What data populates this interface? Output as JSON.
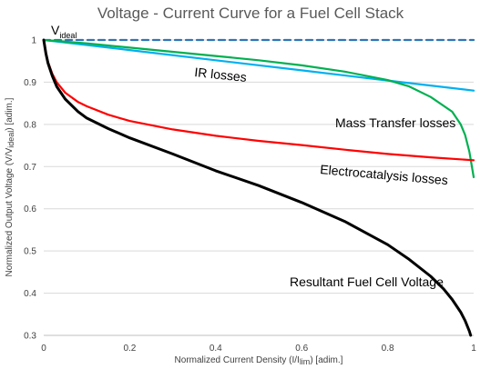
{
  "chart_data": {
    "type": "line",
    "title": "Voltage - Current Curve for a Fuel Cell  Stack",
    "xlabel_main": "Normalized Current Density (I/I",
    "xlabel_sub": "lim",
    "xlabel_tail": ") [adim.]",
    "ylabel_main": "Normalized Output Voltage (V/V",
    "ylabel_sub": "ideal",
    "ylabel_tail": ")  [adim.]",
    "xlim": [
      0,
      1
    ],
    "ylim": [
      0.3,
      1.0
    ],
    "x_ticks": [
      "0",
      "0.2",
      "0.4",
      "0.6",
      "0.8",
      "1"
    ],
    "y_ticks": [
      "0.3",
      "0.4",
      "0.5",
      "0.6",
      "0.7",
      "0.8",
      "0.9",
      "1"
    ],
    "grid": "horizontal",
    "legend": "none",
    "annotations": {
      "videal_main": "V",
      "videal_sub": "ideal",
      "ir": "IR losses",
      "mass": "Mass Transfer losses",
      "electro": "Electrocatalysis losses",
      "result": "Resultant Fuel Cell Voltage"
    },
    "series": [
      {
        "key": "ideal",
        "color": "#2E75B6",
        "dash": true,
        "points": [
          [
            0,
            1.0
          ],
          [
            1.0,
            1.0
          ]
        ]
      },
      {
        "key": "ir",
        "color": "#00B0F0",
        "dash": false,
        "points": [
          [
            0,
            1.0
          ],
          [
            0.2,
            0.976
          ],
          [
            0.4,
            0.952
          ],
          [
            0.6,
            0.928
          ],
          [
            0.8,
            0.904
          ],
          [
            1.0,
            0.88
          ]
        ]
      },
      {
        "key": "mass",
        "color": "#00B050",
        "dash": false,
        "points": [
          [
            0,
            1.0
          ],
          [
            0.1,
            0.992
          ],
          [
            0.2,
            0.982
          ],
          [
            0.3,
            0.972
          ],
          [
            0.4,
            0.962
          ],
          [
            0.5,
            0.952
          ],
          [
            0.6,
            0.94
          ],
          [
            0.7,
            0.925
          ],
          [
            0.8,
            0.905
          ],
          [
            0.85,
            0.89
          ],
          [
            0.9,
            0.865
          ],
          [
            0.95,
            0.83
          ],
          [
            0.97,
            0.8
          ],
          [
            0.98,
            0.775
          ],
          [
            0.99,
            0.735
          ],
          [
            1.0,
            0.675
          ]
        ]
      },
      {
        "key": "electro",
        "color": "#FF0000",
        "dash": false,
        "points": [
          [
            0,
            1.0
          ],
          [
            0.005,
            0.97
          ],
          [
            0.01,
            0.948
          ],
          [
            0.02,
            0.92
          ],
          [
            0.03,
            0.9
          ],
          [
            0.05,
            0.875
          ],
          [
            0.08,
            0.853
          ],
          [
            0.1,
            0.843
          ],
          [
            0.15,
            0.823
          ],
          [
            0.2,
            0.808
          ],
          [
            0.3,
            0.788
          ],
          [
            0.4,
            0.773
          ],
          [
            0.5,
            0.761
          ],
          [
            0.6,
            0.751
          ],
          [
            0.7,
            0.74
          ],
          [
            0.8,
            0.73
          ],
          [
            0.9,
            0.722
          ],
          [
            1.0,
            0.715
          ]
        ]
      },
      {
        "key": "result",
        "color": "#000000",
        "dash": false,
        "points": [
          [
            0,
            1.0
          ],
          [
            0.005,
            0.968
          ],
          [
            0.01,
            0.945
          ],
          [
            0.02,
            0.915
          ],
          [
            0.03,
            0.89
          ],
          [
            0.05,
            0.86
          ],
          [
            0.08,
            0.83
          ],
          [
            0.1,
            0.815
          ],
          [
            0.15,
            0.79
          ],
          [
            0.2,
            0.768
          ],
          [
            0.3,
            0.73
          ],
          [
            0.4,
            0.69
          ],
          [
            0.5,
            0.655
          ],
          [
            0.6,
            0.615
          ],
          [
            0.7,
            0.57
          ],
          [
            0.8,
            0.515
          ],
          [
            0.85,
            0.48
          ],
          [
            0.9,
            0.44
          ],
          [
            0.93,
            0.41
          ],
          [
            0.95,
            0.385
          ],
          [
            0.97,
            0.355
          ],
          [
            0.98,
            0.335
          ],
          [
            0.99,
            0.31
          ],
          [
            0.993,
            0.3
          ]
        ]
      }
    ]
  }
}
